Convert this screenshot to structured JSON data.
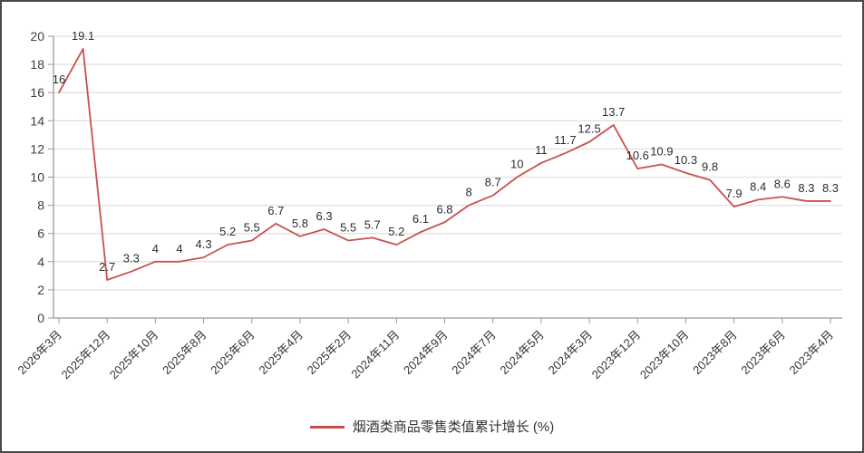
{
  "chart_data": {
    "type": "line",
    "title": "",
    "xlabel": "",
    "ylabel": "",
    "ylim": [
      0,
      20
    ],
    "y_tick_step": 2,
    "y_tick_labels": [
      "0",
      "2",
      "4",
      "6",
      "8",
      "10",
      "12",
      "14",
      "16",
      "18",
      "20"
    ],
    "grid": true,
    "legend_position": "bottom",
    "data_labels": true,
    "x_tick_every": 2,
    "x_tick_labels": [
      "2026年3月",
      "2025年12月",
      "2025年10月",
      "2025年8月",
      "2025年6月",
      "2025年4月",
      "2025年2月",
      "2024年11月",
      "2024年9月",
      "2024年7月",
      "2024年5月",
      "2024年3月",
      "2023年12月",
      "2023年10月",
      "2023年8月",
      "2023年6月",
      "2023年4月"
    ],
    "series": [
      {
        "name": "烟酒类商品零售类值累计增长 (%)",
        "color": "#c9514d",
        "values": [
          16,
          19.1,
          2.7,
          3.3,
          4,
          4,
          4.3,
          5.2,
          5.5,
          6.7,
          5.8,
          6.3,
          5.5,
          5.7,
          5.2,
          6.1,
          6.8,
          8,
          8.7,
          10,
          11,
          11.7,
          12.5,
          13.7,
          10.6,
          10.9,
          10.3,
          9.8,
          7.9,
          8.4,
          8.6,
          8.3,
          8.3
        ]
      }
    ]
  },
  "legend": {
    "marker_color": "#c9514d",
    "label": "烟酒类商品零售类值累计增长 (%)"
  },
  "colors": {
    "axis": "#9a9a9a",
    "gridline": "#e1e1e1",
    "tick_text": "#404040",
    "data_label_text": "#2d2d2d",
    "border": "#4a4a4a"
  }
}
